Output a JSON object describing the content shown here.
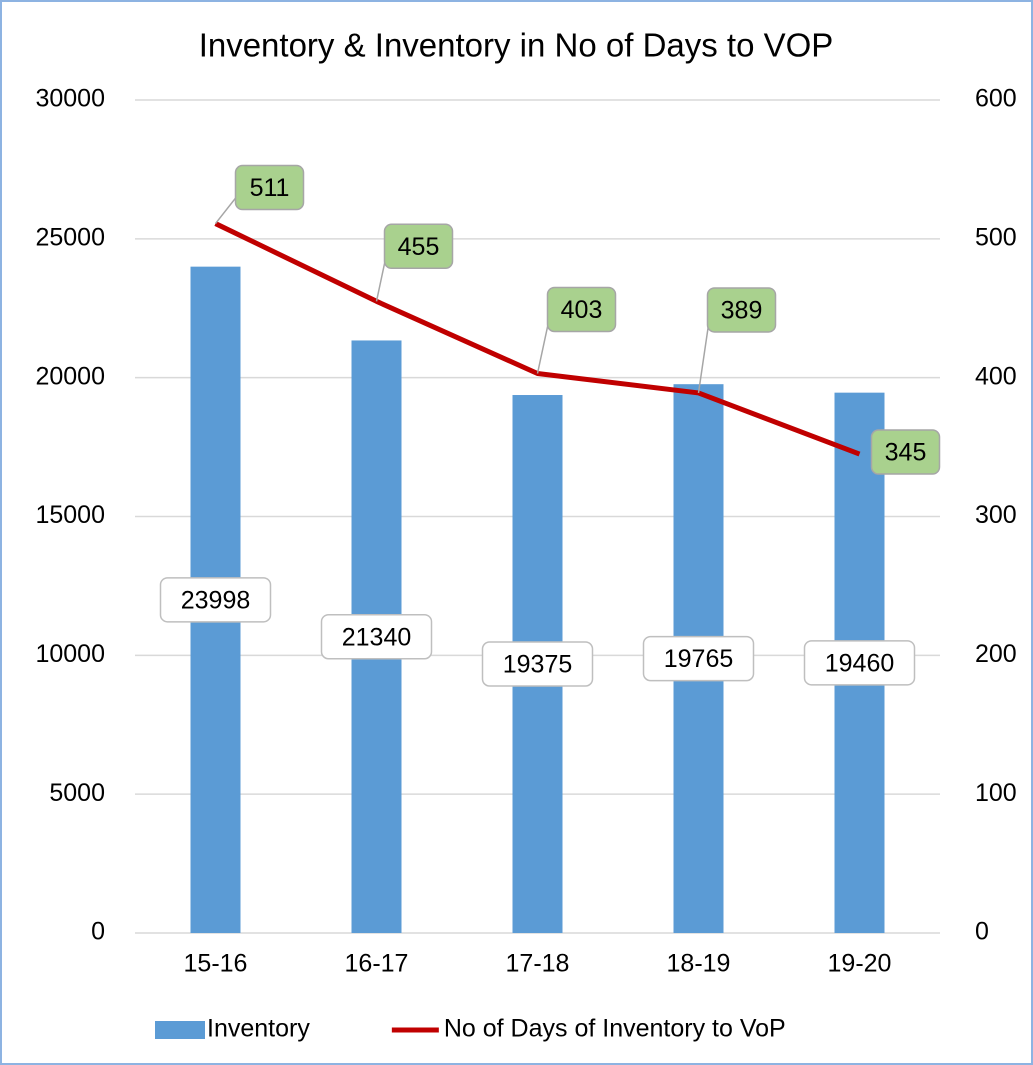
{
  "chart_data": {
    "type": "combo",
    "title": "Inventory & Inventory in No of Days to VOP",
    "categories": [
      "15-16",
      "16-17",
      "17-18",
      "18-19",
      "19-20"
    ],
    "series": [
      {
        "name": "Inventory",
        "type": "bar",
        "color": "#5b9bd5",
        "values": [
          23998,
          21340,
          19375,
          19765,
          19460
        ]
      },
      {
        "name": "No of Days of Inventory to VoP",
        "type": "line",
        "axis": "y2",
        "color": "#c00000",
        "values": [
          511,
          455,
          403,
          389,
          345
        ]
      }
    ],
    "ylim": [
      0,
      30000
    ],
    "yticks": [
      0,
      5000,
      10000,
      15000,
      20000,
      25000,
      30000
    ],
    "y2lim": [
      0,
      600
    ],
    "y2ticks": [
      0,
      100,
      200,
      300,
      400,
      500,
      600
    ],
    "grid": true,
    "legend": "bottom"
  }
}
